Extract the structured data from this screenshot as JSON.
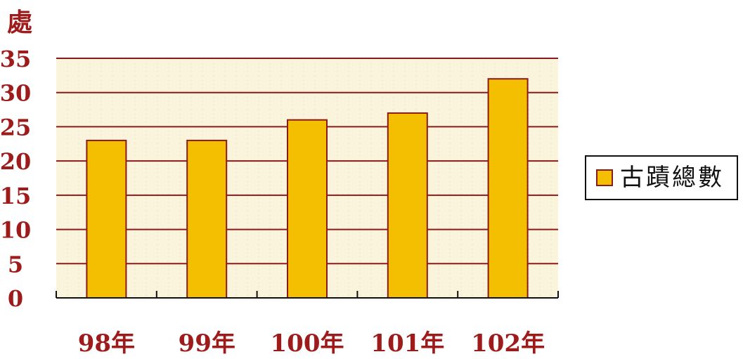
{
  "chart_data": {
    "type": "bar",
    "unit": "處",
    "categories": [
      "98年",
      "99年",
      "100年",
      "101年",
      "102年"
    ],
    "series": [
      {
        "name": "古蹟總數",
        "values": [
          23,
          23,
          26,
          27,
          32
        ]
      }
    ],
    "ylim": [
      0,
      35
    ],
    "yticks": [
      "0",
      "5",
      "10",
      "15",
      "20",
      "25",
      "30",
      "35"
    ],
    "grid": true,
    "legend_position": "right",
    "colors": {
      "bar_fill": "#f4bf00",
      "bar_stroke": "#8b1a1a",
      "plot_background": "#fbf4dc",
      "gridline": "#8b1a1a",
      "axis_text": "#9e1b1b",
      "axis_line": "#111111"
    }
  }
}
